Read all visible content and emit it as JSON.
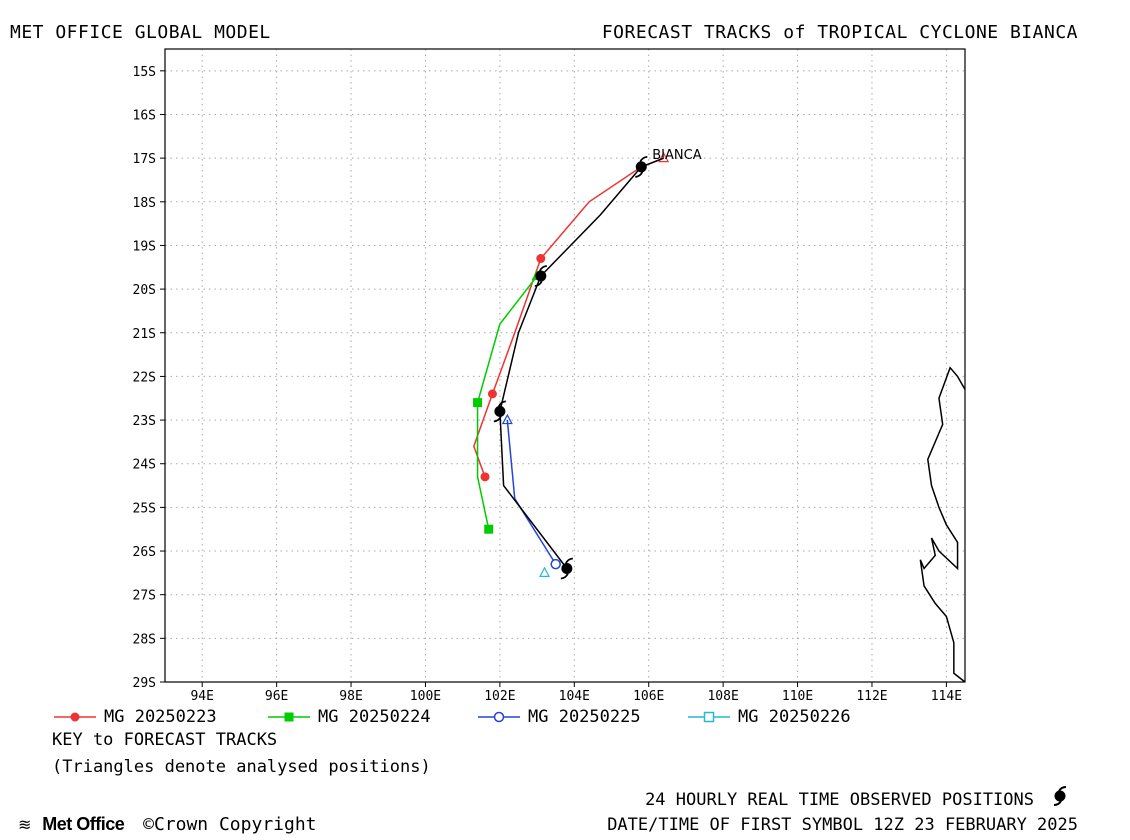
{
  "header": {
    "left_title": "MET OFFICE GLOBAL MODEL",
    "right_title": "FORECAST TRACKS of TROPICAL CYCLONE BIANCA"
  },
  "chart_data": {
    "type": "map-tracks",
    "storm_name": "BIANCA",
    "lon_range": [
      93,
      114.5
    ],
    "lat_range": [
      -29,
      -14.5
    ],
    "lon_ticks": [
      "94E",
      "96E",
      "98E",
      "100E",
      "102E",
      "104E",
      "106E",
      "108E",
      "110E",
      "112E",
      "114E"
    ],
    "lat_ticks": [
      "15S",
      "16S",
      "17S",
      "18S",
      "19S",
      "20S",
      "21S",
      "22S",
      "23S",
      "24S",
      "25S",
      "26S",
      "27S",
      "28S",
      "29S"
    ],
    "grid": true,
    "observed_track": {
      "color": "#000000",
      "points": [
        [
          106.4,
          -17.0
        ],
        [
          105.8,
          -17.2
        ],
        [
          104.7,
          -18.3
        ],
        [
          103.1,
          -19.7
        ],
        [
          102.5,
          -21.0
        ],
        [
          102.0,
          -22.8
        ],
        [
          102.1,
          -24.5
        ],
        [
          103.8,
          -26.4
        ]
      ],
      "daily_positions": [
        [
          105.8,
          -17.2
        ],
        [
          103.1,
          -19.7
        ],
        [
          102.0,
          -22.8
        ],
        [
          103.8,
          -26.4
        ]
      ]
    },
    "coastline": [
      [
        114.5,
        -22.3
      ],
      [
        114.3,
        -22.0
      ],
      [
        114.1,
        -21.8
      ],
      [
        113.8,
        -22.5
      ],
      [
        113.9,
        -23.1
      ],
      [
        113.5,
        -23.9
      ],
      [
        113.6,
        -24.5
      ],
      [
        113.8,
        -25.0
      ],
      [
        114.0,
        -25.4
      ],
      [
        114.3,
        -25.8
      ],
      [
        114.3,
        -26.4
      ],
      [
        113.8,
        -26.0
      ],
      [
        113.6,
        -25.7
      ],
      [
        113.7,
        -26.1
      ],
      [
        113.4,
        -26.4
      ],
      [
        113.3,
        -26.2
      ],
      [
        113.4,
        -26.8
      ],
      [
        113.7,
        -27.2
      ],
      [
        114.0,
        -27.5
      ],
      [
        114.2,
        -28.1
      ],
      [
        114.2,
        -28.8
      ],
      [
        114.5,
        -29.0
      ]
    ],
    "series": [
      {
        "name": "MG 20250223",
        "color": "#ee3333",
        "marker": "filled-circle",
        "points": [
          [
            106.4,
            -17.0
          ],
          [
            105.8,
            -17.2
          ],
          [
            104.4,
            -18.0
          ],
          [
            103.1,
            -19.3
          ],
          [
            102.4,
            -21.0
          ],
          [
            101.8,
            -22.4
          ],
          [
            101.3,
            -23.6
          ],
          [
            101.6,
            -24.3
          ]
        ],
        "symbol_points": [
          [
            103.1,
            -19.3
          ],
          [
            101.8,
            -22.4
          ],
          [
            101.6,
            -24.3
          ]
        ],
        "analysed_position": [
          106.4,
          -17.0
        ]
      },
      {
        "name": "MG 20250224",
        "color": "#00cc00",
        "marker": "filled-square",
        "points": [
          [
            103.0,
            -19.7
          ],
          [
            102.0,
            -20.8
          ],
          [
            101.4,
            -22.6
          ],
          [
            101.4,
            -24.3
          ],
          [
            101.7,
            -25.5
          ]
        ],
        "symbol_points": [
          [
            101.4,
            -22.6
          ],
          [
            101.7,
            -25.5
          ]
        ],
        "analysed_position": [
          103.0,
          -19.7
        ]
      },
      {
        "name": "MG 20250225",
        "color": "#2244dd",
        "marker": "open-circle",
        "points": [
          [
            102.2,
            -23.0
          ],
          [
            102.4,
            -24.8
          ],
          [
            103.5,
            -26.3
          ]
        ],
        "symbol_points": [
          [
            103.5,
            -26.3
          ]
        ],
        "analysed_position": [
          102.2,
          -23.0
        ]
      },
      {
        "name": "MG 20250226",
        "color": "#22bbcc",
        "marker": "open-square",
        "points": [],
        "symbol_points": [],
        "analysed_position": [
          103.2,
          -26.5
        ]
      }
    ]
  },
  "legend": {
    "items": [
      {
        "label": "MG 20250223",
        "color": "#ee3333",
        "marker": "filled-circle"
      },
      {
        "label": "MG 20250224",
        "color": "#00cc00",
        "marker": "filled-square"
      },
      {
        "label": "MG 20250225",
        "color": "#2244dd",
        "marker": "open-circle"
      },
      {
        "label": "MG 20250226",
        "color": "#22bbcc",
        "marker": "open-square"
      }
    ],
    "key_title": "KEY to FORECAST TRACKS",
    "key_note": "(Triangles denote analysed positions)"
  },
  "footer": {
    "logo_text": "Met Office",
    "copyright": "Crown Copyright",
    "observed": "24 HOURLY REAL TIME OBSERVED POSITIONS",
    "first_symbol": "DATE/TIME OF FIRST SYMBOL 12Z 23 FEBRUARY 2025"
  }
}
